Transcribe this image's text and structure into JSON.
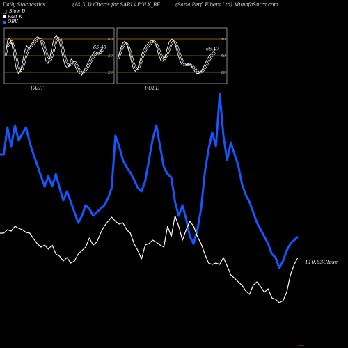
{
  "header": {
    "left": "Daily Stochastics",
    "center": "(14,3,3) Charts for SARLAPOLY_BE",
    "right": "(Sarla Perf. Fibers Ltd) MunafaSutra.com"
  },
  "legend": [
    {
      "label": "Slow D",
      "color": "#000000"
    },
    {
      "label": "Fast K",
      "color": "#ffffff"
    },
    {
      "label": "OBV",
      "color": "#1e6cff"
    }
  ],
  "colors": {
    "obv": "#1457ff",
    "close": "#ffffff",
    "panel_band": "#8a5a00",
    "background": "#000000"
  },
  "panels": [
    {
      "name": "FAST",
      "value_label": "65.46",
      "yticks": [
        20,
        50,
        80
      ],
      "k": [
        55,
        78,
        82,
        70,
        48,
        28,
        18,
        22,
        38,
        58,
        68,
        62,
        70,
        75,
        80,
        84,
        82,
        70,
        58,
        42,
        36,
        48,
        68,
        82,
        86,
        80,
        66,
        48,
        34,
        28,
        32,
        44,
        40,
        30,
        22,
        18,
        15,
        24,
        30,
        38,
        46,
        52,
        58,
        56,
        52,
        60,
        65
      ],
      "d": [
        50,
        66,
        72,
        76,
        66,
        50,
        32,
        22,
        26,
        38,
        52,
        62,
        66,
        70,
        74,
        78,
        80,
        79,
        72,
        60,
        48,
        42,
        48,
        62,
        76,
        82,
        80,
        66,
        50,
        38,
        32,
        34,
        38,
        38,
        32,
        24,
        20,
        20,
        24,
        30,
        36,
        44,
        50,
        54,
        54,
        56,
        60
      ]
    },
    {
      "name": "FULL",
      "value_label": "66.17",
      "yticks": [
        20,
        50,
        80
      ],
      "k": [
        48,
        62,
        72,
        76,
        70,
        58,
        42,
        28,
        22,
        26,
        38,
        52,
        62,
        68,
        72,
        76,
        78,
        74,
        66,
        52,
        42,
        40,
        48,
        62,
        74,
        80,
        78,
        68,
        54,
        42,
        34,
        32,
        34,
        36,
        34,
        28,
        22,
        18,
        18,
        22,
        28,
        36,
        44,
        50,
        54,
        58,
        62
      ],
      "d": [
        44,
        54,
        64,
        70,
        72,
        66,
        54,
        40,
        30,
        26,
        30,
        40,
        52,
        60,
        66,
        70,
        74,
        76,
        72,
        64,
        54,
        46,
        44,
        50,
        60,
        70,
        76,
        74,
        66,
        54,
        44,
        36,
        33,
        33,
        34,
        32,
        28,
        24,
        20,
        20,
        22,
        28,
        34,
        42,
        48,
        52,
        56
      ]
    }
  ],
  "chart_data": {
    "type": "line",
    "series": [
      {
        "name": "OBV",
        "values": [
          222,
          222,
          183,
          210,
          180,
          202,
          192,
          183,
          205,
          222,
          237,
          253,
          268,
          253,
          268,
          250,
          270,
          288,
          275,
          290,
          305,
          320,
          310,
          295,
          300,
          310,
          305,
          300,
          295,
          285,
          270,
          195,
          210,
          230,
          240,
          248,
          258,
          270,
          275,
          260,
          230,
          200,
          180,
          210,
          240,
          250,
          255,
          290,
          310,
          295,
          315,
          340,
          350,
          330,
          300,
          248,
          215,
          190,
          210,
          135,
          195,
          230,
          205,
          222,
          238,
          265,
          280,
          290,
          305,
          320,
          330,
          340,
          350,
          365,
          370,
          385,
          375,
          360,
          350,
          345,
          340
        ],
        "close_marker": true
      },
      {
        "name": "Close",
        "values": [
          335,
          335,
          330,
          332,
          325,
          328,
          330,
          334,
          335,
          343,
          350,
          355,
          352,
          358,
          352,
          365,
          368,
          375,
          370,
          378,
          375,
          365,
          360,
          355,
          342,
          352,
          348,
          335,
          325,
          318,
          312,
          318,
          322,
          320,
          330,
          335,
          350,
          360,
          372,
          352,
          350,
          345,
          348,
          352,
          355,
          325,
          340,
          310,
          325,
          345,
          330,
          318,
          325,
          340,
          350,
          365,
          378,
          380,
          378,
          380,
          370,
          382,
          395,
          400,
          405,
          410,
          418,
          423,
          410,
          405,
          412,
          420,
          415,
          428,
          430,
          435,
          432,
          420,
          395,
          380,
          370
        ]
      },
      {
        "name": "Close value",
        "value_label": "110.53Close"
      }
    ],
    "note_close": "110.53Close"
  }
}
